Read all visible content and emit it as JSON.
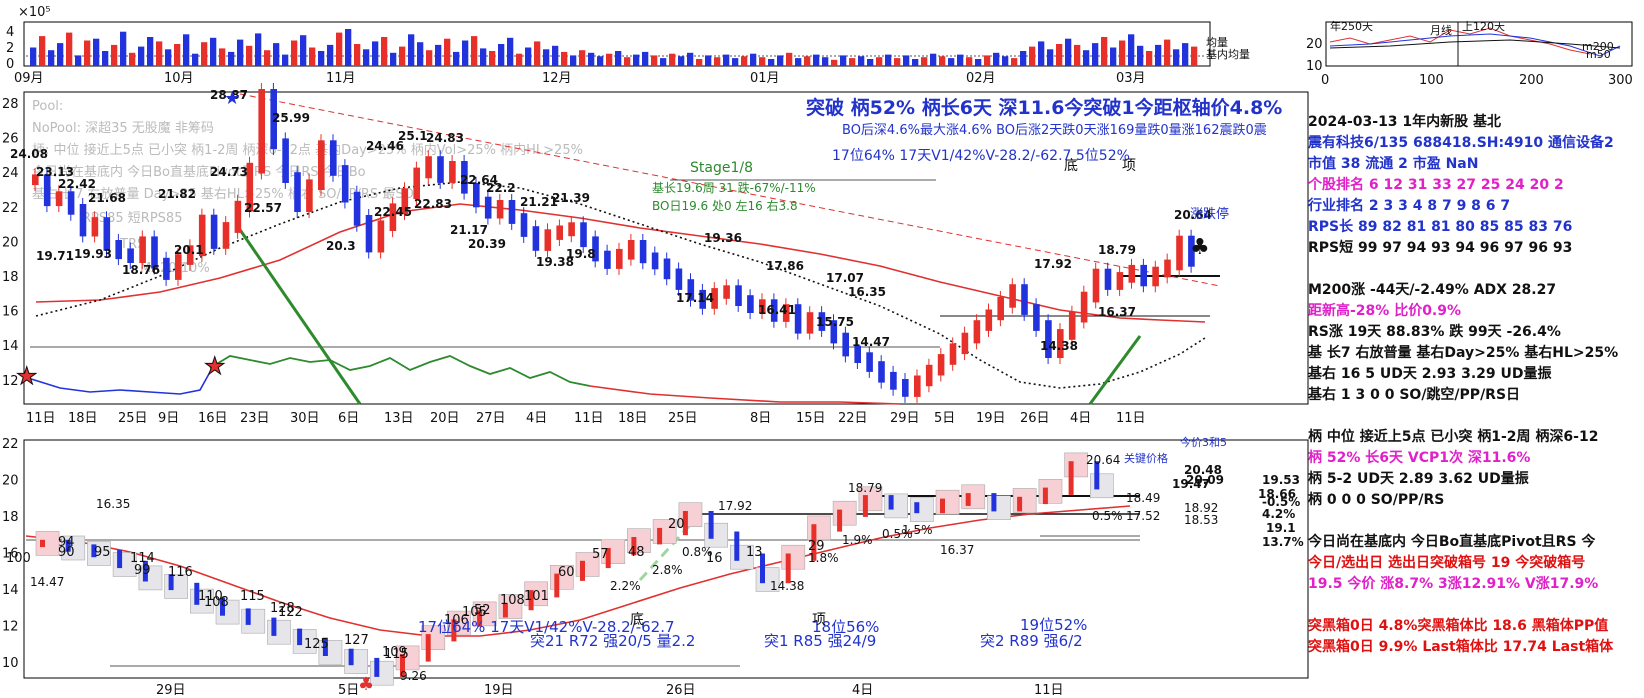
{
  "colors": {
    "up": "#e8302a",
    "down": "#2233dd",
    "ma_red": "#e03030",
    "ma_dot": "#111111",
    "rs_line": "#2d8a2d",
    "blue_text": "#2233cc",
    "magenta": "#e020c8",
    "red_text": "#e01010"
  },
  "vol_panel": {
    "exponent_label": "×10⁵",
    "yticks": [
      "4",
      "2",
      "0"
    ],
    "legend": [
      "均量",
      "基内均量"
    ]
  },
  "mini_panel": {
    "yticks": [
      "20",
      "10"
    ],
    "xticks": [
      "0",
      "100",
      "200",
      "300"
    ],
    "labels": [
      "年250天",
      "月线",
      "上120天",
      "m200",
      "m50"
    ]
  },
  "top_x_months": [
    "09月",
    "10月",
    "11月",
    "12月",
    "01月",
    "02月",
    "03月"
  ],
  "main_panel": {
    "yticks": [
      "28",
      "26",
      "24",
      "22",
      "20",
      "18",
      "16",
      "14",
      "12"
    ],
    "xticks": [
      "11日",
      "18日",
      "25日",
      "9日",
      "16日",
      "23日",
      "30日",
      "6日",
      "13日",
      "20日",
      "27日",
      "4日",
      "11日",
      "18日",
      "25日",
      "8日",
      "15日",
      "22日",
      "29日",
      "5日",
      "19日",
      "26日",
      "4日",
      "11日"
    ],
    "price_labels": [
      "28.87",
      "24.08",
      "23.13",
      "22.42",
      "21.68",
      "21.82",
      "19.93",
      "19.71",
      "18.76",
      "20.1",
      "24.73",
      "25.99",
      "22.57",
      "24.46",
      "25.1",
      "24.83",
      "22.64",
      "22.2",
      "22.45",
      "22.83",
      "20.3",
      "21.17",
      "20.39",
      "21.21",
      "21.39",
      "19.38",
      "19.8",
      "19.36",
      "17.14",
      "17.86",
      "17.07",
      "16.41",
      "15.75",
      "16.35",
      "14.47",
      "17.92",
      "18.79",
      "20.64",
      "16.37",
      "14.38"
    ],
    "headline": "突破 柄52% 柄长6天 深11.6今突破1今距枢轴价4.8%",
    "sub1": "BO后深4.6%最大涨4.6% BO后涨2天跌0天涨169量跌0量涨162震跌0震",
    "sub2": "17位64%  17天V1/42%V-28.2/-62.7  5位52%",
    "stage": "Stage1/8",
    "base1": "基长19.6周 31 跌-67%/-11%",
    "base2": "BO日19.6 处0 左16 右3.8",
    "bottom_top": [
      "底",
      "项"
    ],
    "zhangtingzi": "涨跌停",
    "faded": [
      "Pool:",
      "NoPool: 深超35 无股魔 非筹码",
      "柄: 中位 接近上5点 已小突 柄1-2周 柄深6-12点 基内Day>25% 柄内Vol>25% 柄内HL>25%",
      "今日尚在基底内 今日Bo直基底Pivot且RS 今日RS 今日Bo",
      "基右 长7 右放普量 Day>25 基右HL>25% 柄右 SO/PP/RS 最SO",
      "RPS85 短RPS85",
      "TRS",
      "MA20 10%"
    ]
  },
  "lower_panel": {
    "yticks": [
      "22",
      "20",
      "18",
      "16",
      "14",
      "12",
      "10"
    ],
    "xticks": [
      "29日",
      "5日",
      "19日",
      "26日",
      "4日",
      "11日"
    ],
    "labels": [
      "16.35",
      "14.47",
      "9.26",
      "17.92",
      "18.79",
      "20.64",
      "16.37",
      "14.38",
      "17.52",
      "18.49",
      "18.92",
      "18.53",
      "19.53",
      "20.48",
      "19.47",
      "20.09",
      "18.66",
      "19.1",
      "13.7%",
      "-0.5%",
      "4.2%",
      "0.5%",
      "0.8%",
      "2.2%",
      "2.8%",
      "1.9%",
      "1.5%",
      "1.8%",
      "0.5%"
    ],
    "nums": [
      "100",
      "94",
      "90",
      "95",
      "114",
      "99",
      "116",
      "110",
      "108",
      "115",
      "128",
      "122",
      "125",
      "127",
      "115",
      "109",
      "106",
      "105",
      "108",
      "101",
      "52",
      "60",
      "57",
      "48",
      "20",
      "16",
      "13",
      "29"
    ],
    "bottom_texts": [
      "17位64%  17天V1/42%V-28.2/-62.7",
      "突21 R72 强20/5 量2.2",
      "突1 R85 强24/9",
      "突2 R89 强6/2",
      "18位56%",
      "19位52%",
      "底",
      "项"
    ],
    "top_notes": [
      "今价3和5",
      "关键价格"
    ]
  },
  "right_panel": {
    "rows": [
      {
        "t": "2024-03-13 1年内新股 基北",
        "c": "#111111"
      },
      {
        "t": "震有科技6/135 688418.SH:4910 通信设备2",
        "c": "#2233cc"
      },
      {
        "t": "市值 38  流通 2 市盈 NaN",
        "c": "#2233cc"
      },
      {
        "t": " 个股排名 6  12  31  33  27  25  24  20  2",
        "c": "#e020c8"
      },
      {
        "t": " 行业排名 2   3   3   4   8   7   9   8   6   7",
        "c": "#2233cc"
      },
      {
        "t": " RPS长 89  82  81  81  80  85  85  83  76",
        "c": "#2233cc"
      },
      {
        "t": " RPS短 99  97  94  93  94  96  97  96  93",
        "c": "#111111"
      },
      {
        "t": "",
        "c": "#111111"
      },
      {
        "t": "M200涨 -44天/-2.49%  ADX 28.27",
        "c": "#111111"
      },
      {
        "t": "距新高-28%  比价0.9%",
        "c": "#e020c8"
      },
      {
        "t": "RS涨 19天 88.83% 跌 99天 -26.4%",
        "c": "#111111"
      },
      {
        "t": "基 长7 右放普量 基右Day>25% 基右HL>25%",
        "c": "#111111"
      },
      {
        "t": "基右 16 5 UD天 2.93 3.29 UD量振",
        "c": "#111111"
      },
      {
        "t": "基右 1 3 0 0 SO/跳空/PP/RS日",
        "c": "#111111"
      },
      {
        "t": "",
        "c": "#111111"
      },
      {
        "t": "柄 中位 接近上5点 已小突 柄1-2周 柄深6-12",
        "c": "#111111"
      },
      {
        "t": "柄 52% 长6天  VCP1次 深11.6%",
        "c": "#e020c8"
      },
      {
        "t": "柄 5-2 UD天 2.89 3.62 UD量振",
        "c": "#111111"
      },
      {
        "t": "柄 0 0 0 SO/PP/RS",
        "c": "#111111"
      },
      {
        "t": "",
        "c": "#111111"
      },
      {
        "t": "今日尚在基底内 今日Bo直基底Pivot且RS 今",
        "c": "#111111"
      },
      {
        "t": "今日/选出日  选出日突破箱号 19 今突破箱号",
        "c": "#e01010"
      },
      {
        "t": "19.5 今价  涨8.7% 3涨12.91% V涨17.9%",
        "c": "#e020c8"
      },
      {
        "t": "",
        "c": "#111111"
      },
      {
        "t": "突黑箱0日 4.8%突黑箱体比 18.6 黑箱体PP值",
        "c": "#e01010"
      },
      {
        "t": "突黑箱0日 9.9% Last箱体比 17.74 Last箱体",
        "c": "#e01010"
      }
    ]
  },
  "chart_data": [
    {
      "type": "bar",
      "title": "volume",
      "ylabel": "",
      "ylim": [
        0,
        5
      ],
      "values": [
        2.1,
        3.4,
        1.8,
        2.6,
        3.8,
        1.2,
        2.9,
        3.1,
        1.7,
        2.4,
        3.9,
        1.5,
        2.2,
        3.3,
        2.8,
        1.9,
        2.5,
        3.6,
        1.4,
        2.7,
        3.2,
        2.0,
        1.6,
        3.0,
        2.3,
        3.7,
        1.8,
        2.6,
        1.3,
        2.9,
        3.5,
        2.1,
        1.7,
        2.4,
        3.8,
        4.2,
        2.5,
        1.9,
        2.8,
        3.3,
        1.5,
        2.2,
        3.6,
        2.7,
        1.8,
        2.4,
        3.1,
        1.6,
        2.9,
        3.4,
        2.0,
        1.7,
        2.5,
        3.2,
        1.4,
        2.1,
        2.8,
        1.9,
        2.3,
        1.6,
        1.2,
        1.8,
        1.5,
        1.1,
        1.4,
        1.7,
        1.0,
        1.3,
        1.6,
        1.2,
        0.9,
        1.4,
        1.1,
        1.5,
        0.8,
        1.2,
        1.0,
        1.3,
        0.9,
        1.1,
        1.4,
        1.0,
        0.8,
        1.2,
        1.5,
        0.9,
        1.1,
        1.3,
        1.0,
        0.7,
        1.2,
        0.9,
        1.1,
        0.8,
        1.0,
        1.3,
        0.9,
        1.2,
        0.8,
        1.0,
        1.4,
        1.1,
        0.9,
        1.3,
        1.0,
        0.8,
        1.2,
        1.5,
        1.1,
        0.9,
        1.7,
        2.2,
        2.8,
        1.9,
        2.5,
        3.1,
        2.4,
        1.8,
        2.6,
        3.3,
        2.1,
        2.9,
        3.6,
        2.3,
        1.7,
        2.4,
        3.0,
        1.9,
        2.6,
        2.2
      ]
    },
    {
      "type": "line",
      "title": "price",
      "ylim": [
        11.5,
        29
      ],
      "series": [
        {
          "values": [
            24.08,
            22.9,
            23.13,
            22.42,
            21.2,
            21.68,
            20.4,
            19.93,
            19.71,
            20.6,
            19.4,
            18.76,
            19.6,
            20.1,
            21.82,
            20.5,
            21.4,
            22.6,
            24.73,
            28.87,
            26.1,
            24.2,
            22.57,
            23.8,
            25.99,
            24.6,
            23.1,
            21.8,
            20.3,
            21.5,
            22.45,
            23.3,
            24.46,
            25.1,
            24.2,
            24.83,
            23.6,
            22.83,
            22.2,
            22.64,
            21.9,
            21.17,
            20.39,
            21.0,
            21.21,
            21.39,
            20.6,
            19.8,
            19.38,
            19.9,
            20.4,
            19.7,
            19.36,
            18.8,
            18.2,
            17.6,
            17.14,
            17.7,
            17.86,
            17.3,
            16.9,
            17.07,
            16.41,
            16.8,
            15.75,
            16.35,
            15.9,
            15.2,
            14.47,
            14.1,
            13.6,
            13.0,
            12.6,
            12.2,
            12.8,
            13.4,
            14.0,
            14.6,
            15.2,
            15.9,
            16.5,
            17.2,
            17.92,
            16.8,
            15.9,
            14.38,
            15.4,
            16.37,
            17.5,
            18.79,
            18.2,
            18.6,
            19.0,
            18.4,
            18.9,
            19.3,
            20.64,
            19.5
          ]
        }
      ],
      "xlabel": "",
      "ylabel": ""
    },
    {
      "type": "line",
      "title": "lower",
      "ylim": [
        9,
        22
      ],
      "series": [
        {
          "values": [
            16.35,
            16.1,
            15.8,
            15.2,
            14.47,
            14.0,
            13.2,
            12.6,
            12.1,
            11.5,
            11.0,
            10.4,
            9.9,
            9.26,
            10.1,
            11.2,
            12.0,
            12.5,
            12.9,
            13.6,
            14.5,
            15.2,
            15.9,
            16.5,
            17.0,
            17.92,
            16.8,
            15.6,
            14.38,
            15.6,
            17.2,
            18.0,
            18.79,
            18.4,
            18.2,
            18.6,
            18.9,
            18.3,
            18.7,
            19.2,
            20.64,
            19.5
          ]
        }
      ],
      "xlabel": "",
      "ylabel": ""
    }
  ]
}
